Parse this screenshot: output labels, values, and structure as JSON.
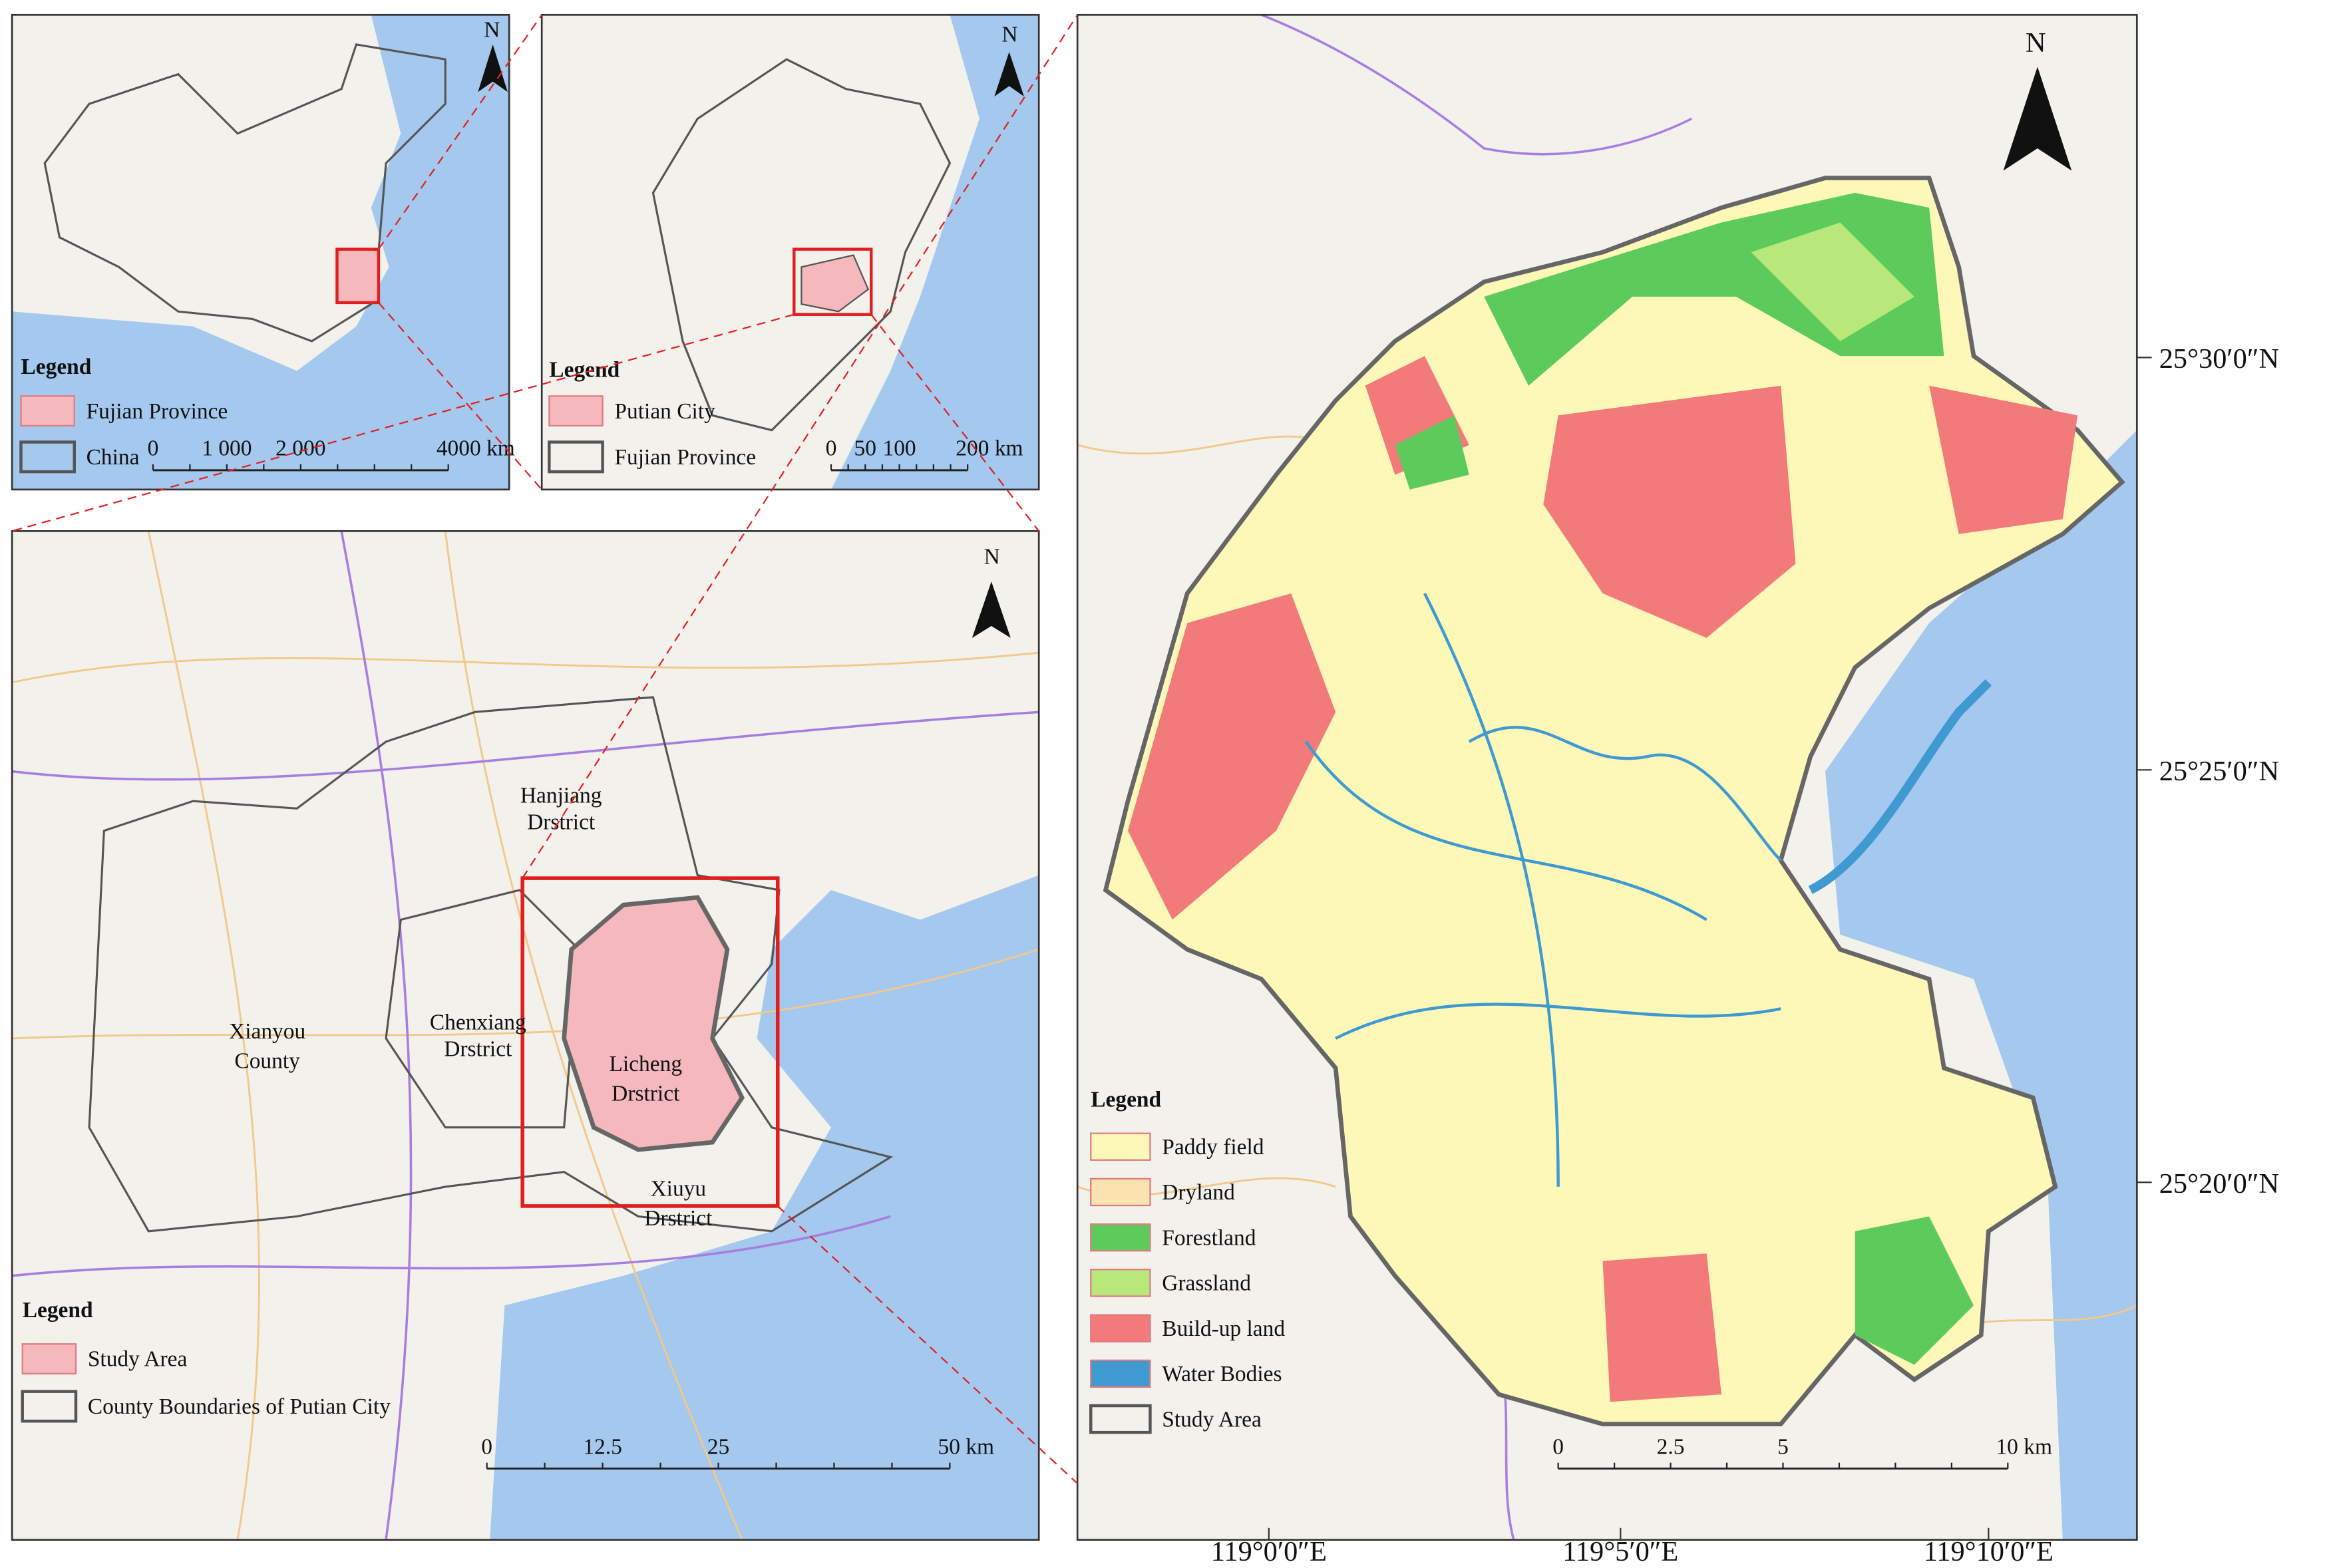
{
  "panels": [
    {
      "north": "N",
      "legend": {
        "title": "Legend",
        "items": [
          {
            "label": "Fujian Province",
            "color": "#f5b8bd"
          },
          {
            "label": "China",
            "color": "#ffffff"
          }
        ]
      },
      "scale": [
        "0",
        "1 000",
        "2 000",
        "4000 km"
      ]
    },
    {
      "north": "N",
      "legend": {
        "title": "Legend",
        "items": [
          {
            "label": "Putian City",
            "color": "#f5b8bd"
          },
          {
            "label": "Fujian Province",
            "color": "#ffffff"
          }
        ]
      },
      "scale": [
        "0",
        "50",
        "100",
        "200 km"
      ]
    },
    {
      "north": "N",
      "labels": [
        {
          "lines": [
            "Hanjiang",
            "Drstrict"
          ]
        },
        {
          "lines": [
            "Chenxiang",
            "Drstrict"
          ]
        },
        {
          "lines": [
            "Xianyou",
            "County"
          ]
        },
        {
          "lines": [
            "Licheng",
            "Drstrict"
          ]
        },
        {
          "lines": [
            "Xiuyu",
            "Drstrict"
          ]
        }
      ],
      "legend": {
        "title": "Legend",
        "items": [
          {
            "label": "Study Area",
            "color": "#f5b8bd"
          },
          {
            "label": "County Boundaries of Putian City",
            "color": "#ffffff"
          }
        ]
      },
      "scale": [
        "0",
        "12.5",
        "25",
        "50 km"
      ]
    },
    {
      "north": "N",
      "legend": {
        "title": "Legend",
        "items": [
          {
            "label": "Paddy field",
            "color": "#fdf8b8"
          },
          {
            "label": "Dryland",
            "color": "#fce3b0"
          },
          {
            "label": "Forestland",
            "color": "#5ccb5c"
          },
          {
            "label": "Grassland",
            "color": "#b9e87a"
          },
          {
            "label": "Build-up land",
            "color": "#f27a7a"
          },
          {
            "label": "Water Bodies",
            "color": "#3f9ad1"
          },
          {
            "label": "Study Area",
            "color": "#ffffff"
          }
        ]
      },
      "scale": [
        "0",
        "2.5",
        "5",
        "10 km"
      ],
      "latitudes": [
        "25°30′0″N",
        "25°25′0″N",
        "25°20′0″N"
      ],
      "longitudes": [
        "119°0′0″E",
        "119°5′0″E",
        "119°10′0″E"
      ]
    }
  ]
}
